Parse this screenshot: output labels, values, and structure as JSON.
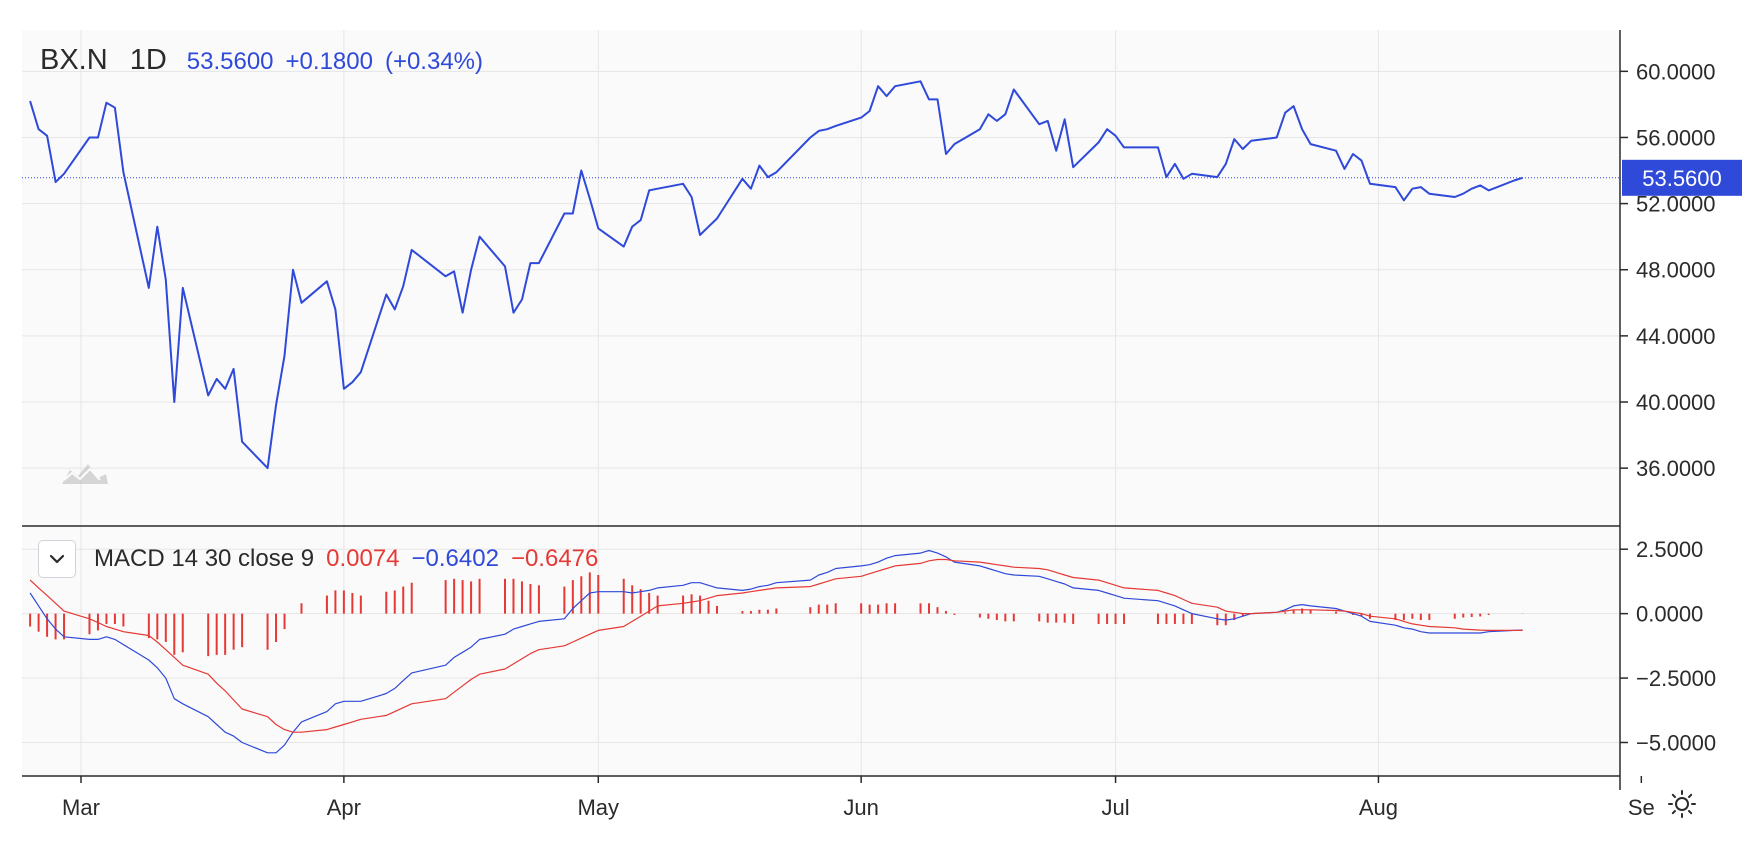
{
  "chart_data": [
    {
      "type": "line",
      "symbol": "BX.N",
      "interval": "1D",
      "last_price": "53.5600",
      "change": "+0.1800",
      "change_percent": "(+0.34%)",
      "price_tag": "53.5600",
      "x_tick_labels": [
        "Mar",
        "Apr",
        "May",
        "Jun",
        "Jul",
        "Aug",
        "Se"
      ],
      "ylim": [
        32.5,
        62.5
      ],
      "y_tick_labels": [
        "60.0000",
        "56.0000",
        "52.0000",
        "48.0000",
        "44.0000",
        "40.0000",
        "36.0000"
      ],
      "y_ticks": [
        60,
        56,
        52,
        48,
        44,
        40,
        36
      ],
      "grid": true,
      "series": [
        {
          "color": "#2f49d9",
          "x": [
            "2020-02-24",
            "2020-02-25",
            "2020-02-26",
            "2020-02-27",
            "2020-02-28",
            "2020-03-02",
            "2020-03-03",
            "2020-03-04",
            "2020-03-05",
            "2020-03-06",
            "2020-03-09",
            "2020-03-10",
            "2020-03-11",
            "2020-03-12",
            "2020-03-13",
            "2020-03-16",
            "2020-03-17",
            "2020-03-18",
            "2020-03-19",
            "2020-03-20",
            "2020-03-23",
            "2020-03-24",
            "2020-03-25",
            "2020-03-26",
            "2020-03-27",
            "2020-03-30",
            "2020-03-31",
            "2020-04-01",
            "2020-04-02",
            "2020-04-03",
            "2020-04-06",
            "2020-04-07",
            "2020-04-08",
            "2020-04-09",
            "2020-04-13",
            "2020-04-14",
            "2020-04-15",
            "2020-04-16",
            "2020-04-17",
            "2020-04-20",
            "2020-04-21",
            "2020-04-22",
            "2020-04-23",
            "2020-04-24",
            "2020-04-27",
            "2020-04-28",
            "2020-04-29",
            "2020-04-30",
            "2020-05-01",
            "2020-05-04",
            "2020-05-05",
            "2020-05-06",
            "2020-05-07",
            "2020-05-08",
            "2020-05-11",
            "2020-05-12",
            "2020-05-13",
            "2020-05-14",
            "2020-05-15",
            "2020-05-18",
            "2020-05-19",
            "2020-05-20",
            "2020-05-21",
            "2020-05-22",
            "2020-05-26",
            "2020-05-27",
            "2020-05-28",
            "2020-05-29",
            "2020-06-01",
            "2020-06-02",
            "2020-06-03",
            "2020-06-04",
            "2020-06-05",
            "2020-06-08",
            "2020-06-09",
            "2020-06-10",
            "2020-06-11",
            "2020-06-12",
            "2020-06-15",
            "2020-06-16",
            "2020-06-17",
            "2020-06-18",
            "2020-06-19",
            "2020-06-22",
            "2020-06-23",
            "2020-06-24",
            "2020-06-25",
            "2020-06-26",
            "2020-06-29",
            "2020-06-30",
            "2020-07-01",
            "2020-07-02",
            "2020-07-06",
            "2020-07-07",
            "2020-07-08",
            "2020-07-09",
            "2020-07-10",
            "2020-07-13",
            "2020-07-14",
            "2020-07-15",
            "2020-07-16",
            "2020-07-17",
            "2020-07-20",
            "2020-07-21",
            "2020-07-22",
            "2020-07-23",
            "2020-07-24",
            "2020-07-27",
            "2020-07-28",
            "2020-07-29",
            "2020-07-30",
            "2020-07-31",
            "2020-08-03",
            "2020-08-04",
            "2020-08-05",
            "2020-08-06",
            "2020-08-07",
            "2020-08-10",
            "2020-08-11",
            "2020-08-12",
            "2020-08-13",
            "2020-08-14",
            "2020-08-17",
            "2020-08-18"
          ],
          "values": [
            58.2,
            56.5,
            56.1,
            53.3,
            53.8,
            56.0,
            56.0,
            58.1,
            57.8,
            53.9,
            46.9,
            50.6,
            47.4,
            40.0,
            46.9,
            40.4,
            41.4,
            40.8,
            42.0,
            37.6,
            36.0,
            39.8,
            42.8,
            48.0,
            46.0,
            47.3,
            45.6,
            40.8,
            41.2,
            41.8,
            46.5,
            45.6,
            47.0,
            49.2,
            47.6,
            47.9,
            45.4,
            48.0,
            50.0,
            48.2,
            45.4,
            46.2,
            48.4,
            48.4,
            51.4,
            51.4,
            54.0,
            52.3,
            50.5,
            49.4,
            50.6,
            51.0,
            52.8,
            52.9,
            53.2,
            52.4,
            50.1,
            50.6,
            51.1,
            53.5,
            52.9,
            54.3,
            53.6,
            53.9,
            56.0,
            56.4,
            56.5,
            56.7,
            57.2,
            57.6,
            59.1,
            58.5,
            59.1,
            59.4,
            58.3,
            58.3,
            55.0,
            55.6,
            56.5,
            57.4,
            57.0,
            57.4,
            58.9,
            56.8,
            57.0,
            55.2,
            57.1,
            54.2,
            55.7,
            56.5,
            56.1,
            55.4,
            55.4,
            53.6,
            54.4,
            53.5,
            53.8,
            53.6,
            54.4,
            55.9,
            55.3,
            55.8,
            56.0,
            57.5,
            57.9,
            56.5,
            55.6,
            55.2,
            54.1,
            55.0,
            54.6,
            53.2,
            53.0,
            52.2,
            52.9,
            53.0,
            52.6,
            52.4,
            52.6,
            52.9,
            53.1,
            52.8,
            53.4,
            53.56
          ]
        }
      ]
    },
    {
      "type": "line",
      "indicator": "MACD 14 30 close 9",
      "legend_values": [
        "0.0074",
        "−0.6402",
        "−0.6476"
      ],
      "ylim": [
        -6.3,
        3.4
      ],
      "y_tick_labels": [
        "2.5000",
        "0.0000",
        "−2.5000",
        "−5.0000"
      ],
      "y_ticks": [
        2.5,
        0,
        -2.5,
        -5
      ],
      "grid": true,
      "series": [
        {
          "color": "#2f49d9",
          "values": [
            0.8,
            0.3,
            -0.2,
            -0.6,
            -0.9,
            -1.0,
            -1.0,
            -0.9,
            -1.0,
            -1.2,
            -1.8,
            -2.1,
            -2.5,
            -3.3,
            -3.5,
            -4.0,
            -4.3,
            -4.6,
            -4.75,
            -5.0,
            -5.4,
            -5.4,
            -5.1,
            -4.6,
            -4.2,
            -3.8,
            -3.5,
            -3.4,
            -3.4,
            -3.4,
            -3.1,
            -2.9,
            -2.6,
            -2.3,
            -2.0,
            -1.7,
            -1.5,
            -1.3,
            -1.0,
            -0.8,
            -0.6,
            -0.5,
            -0.4,
            -0.3,
            -0.2,
            0.2,
            0.5,
            0.8,
            0.85,
            0.85,
            0.8,
            0.85,
            0.9,
            1.0,
            1.1,
            1.2,
            1.2,
            1.1,
            1.0,
            0.9,
            0.95,
            1.05,
            1.1,
            1.2,
            1.3,
            1.5,
            1.6,
            1.75,
            1.85,
            1.9,
            2.0,
            2.15,
            2.25,
            2.35,
            2.45,
            2.35,
            2.2,
            2.0,
            1.85,
            1.75,
            1.65,
            1.55,
            1.5,
            1.45,
            1.35,
            1.25,
            1.15,
            1.0,
            0.9,
            0.8,
            0.7,
            0.6,
            0.5,
            0.4,
            0.3,
            0.15,
            0.0,
            -0.2,
            -0.25,
            -0.2,
            -0.1,
            0.0,
            0.05,
            0.15,
            0.3,
            0.35,
            0.3,
            0.2,
            0.1,
            0.0,
            -0.1,
            -0.3,
            -0.45,
            -0.55,
            -0.6,
            -0.7,
            -0.75,
            -0.75,
            -0.75,
            -0.75,
            -0.75,
            -0.7,
            -0.65,
            -0.64
          ]
        },
        {
          "color": "#e53935",
          "values": [
            1.3,
            1.0,
            0.7,
            0.4,
            0.1,
            -0.2,
            -0.35,
            -0.5,
            -0.6,
            -0.7,
            -0.85,
            -1.1,
            -1.4,
            -1.7,
            -2.0,
            -2.35,
            -2.7,
            -3.0,
            -3.35,
            -3.7,
            -4.0,
            -4.3,
            -4.5,
            -4.6,
            -4.6,
            -4.5,
            -4.4,
            -4.3,
            -4.2,
            -4.1,
            -3.95,
            -3.8,
            -3.65,
            -3.5,
            -3.3,
            -3.05,
            -2.8,
            -2.55,
            -2.35,
            -2.15,
            -1.95,
            -1.75,
            -1.55,
            -1.4,
            -1.25,
            -1.1,
            -0.95,
            -0.8,
            -0.65,
            -0.5,
            -0.3,
            -0.1,
            0.1,
            0.3,
            0.4,
            0.45,
            0.5,
            0.6,
            0.7,
            0.8,
            0.85,
            0.9,
            0.95,
            1.0,
            1.05,
            1.15,
            1.25,
            1.35,
            1.45,
            1.55,
            1.65,
            1.75,
            1.85,
            1.95,
            2.05,
            2.1,
            2.1,
            2.05,
            2.0,
            1.95,
            1.9,
            1.85,
            1.8,
            1.75,
            1.7,
            1.6,
            1.5,
            1.4,
            1.3,
            1.2,
            1.1,
            1.0,
            0.9,
            0.8,
            0.7,
            0.55,
            0.4,
            0.25,
            0.1,
            0.05,
            0.0,
            0.0,
            0.05,
            0.1,
            0.15,
            0.15,
            0.15,
            0.12,
            0.1,
            0.05,
            0.0,
            -0.1,
            -0.2,
            -0.3,
            -0.4,
            -0.45,
            -0.5,
            -0.55,
            -0.6,
            -0.62,
            -0.64,
            -0.65,
            -0.65,
            -0.65
          ]
        }
      ],
      "histogram": {
        "color": "#e53935",
        "values": [
          -0.5,
          -0.7,
          -0.9,
          -1.0,
          -1.0,
          -0.8,
          -0.65,
          -0.4,
          -0.4,
          -0.5,
          -0.95,
          -1.0,
          -1.1,
          -1.6,
          -1.5,
          -1.65,
          -1.6,
          -1.6,
          -1.4,
          -1.3,
          -1.4,
          -1.1,
          -0.6,
          0.0,
          0.4,
          0.7,
          0.9,
          0.9,
          0.8,
          0.7,
          0.85,
          0.9,
          1.05,
          1.2,
          1.3,
          1.35,
          1.3,
          1.25,
          1.35,
          1.35,
          1.35,
          1.25,
          1.15,
          1.1,
          1.05,
          1.3,
          1.45,
          1.6,
          1.5,
          1.35,
          1.1,
          0.95,
          0.8,
          0.7,
          0.7,
          0.75,
          0.7,
          0.5,
          0.3,
          0.1,
          0.1,
          0.15,
          0.15,
          0.2,
          0.25,
          0.35,
          0.35,
          0.4,
          0.4,
          0.35,
          0.35,
          0.4,
          0.4,
          0.4,
          0.4,
          0.25,
          0.1,
          -0.05,
          -0.15,
          -0.2,
          -0.25,
          -0.3,
          -0.3,
          -0.3,
          -0.35,
          -0.35,
          -0.35,
          -0.4,
          -0.4,
          -0.4,
          -0.4,
          -0.4,
          -0.4,
          -0.4,
          -0.4,
          -0.4,
          -0.4,
          -0.45,
          -0.45,
          -0.25,
          -0.1,
          0.0,
          0.0,
          0.05,
          0.15,
          0.2,
          0.15,
          0.08,
          0.0,
          -0.05,
          -0.1,
          -0.2,
          -0.25,
          -0.25,
          -0.2,
          -0.25,
          -0.25,
          -0.2,
          -0.15,
          -0.13,
          -0.11,
          -0.05,
          0.0,
          0.0074
        ]
      }
    }
  ]
}
